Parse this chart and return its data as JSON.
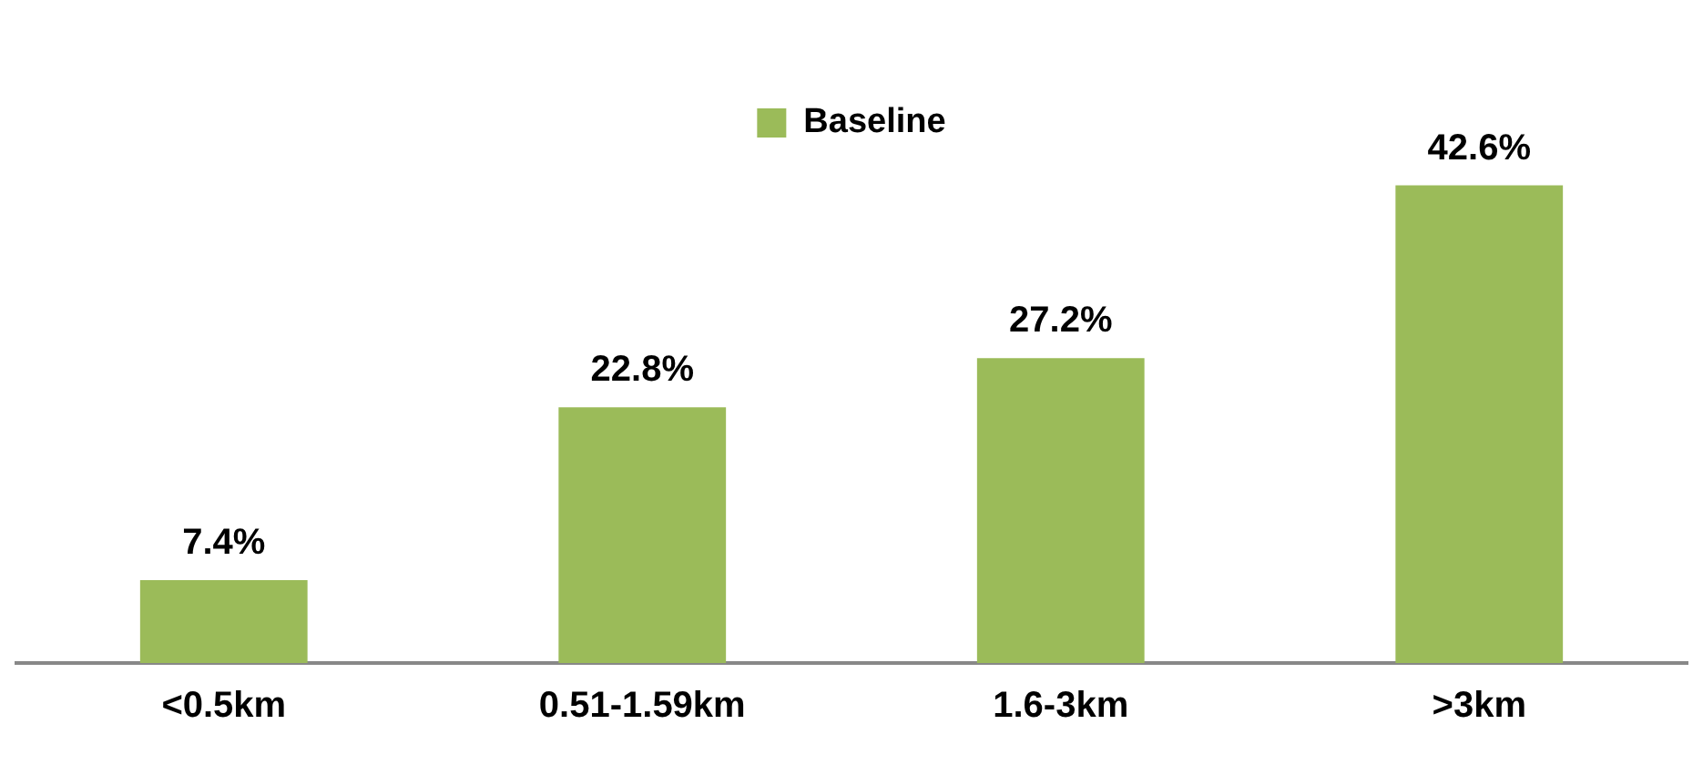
{
  "chart_data": {
    "type": "bar",
    "categories": [
      "<0.5km",
      "0.51-1.59km",
      "1.6-3km",
      ">3km"
    ],
    "series": [
      {
        "name": "Baseline",
        "color": "#9bbb59",
        "values": [
          7.4,
          22.8,
          27.2,
          42.6
        ],
        "value_labels": [
          "7.4%",
          "22.8%",
          "27.2%",
          "42.6%"
        ]
      }
    ],
    "legend": "top",
    "grid": false
  }
}
